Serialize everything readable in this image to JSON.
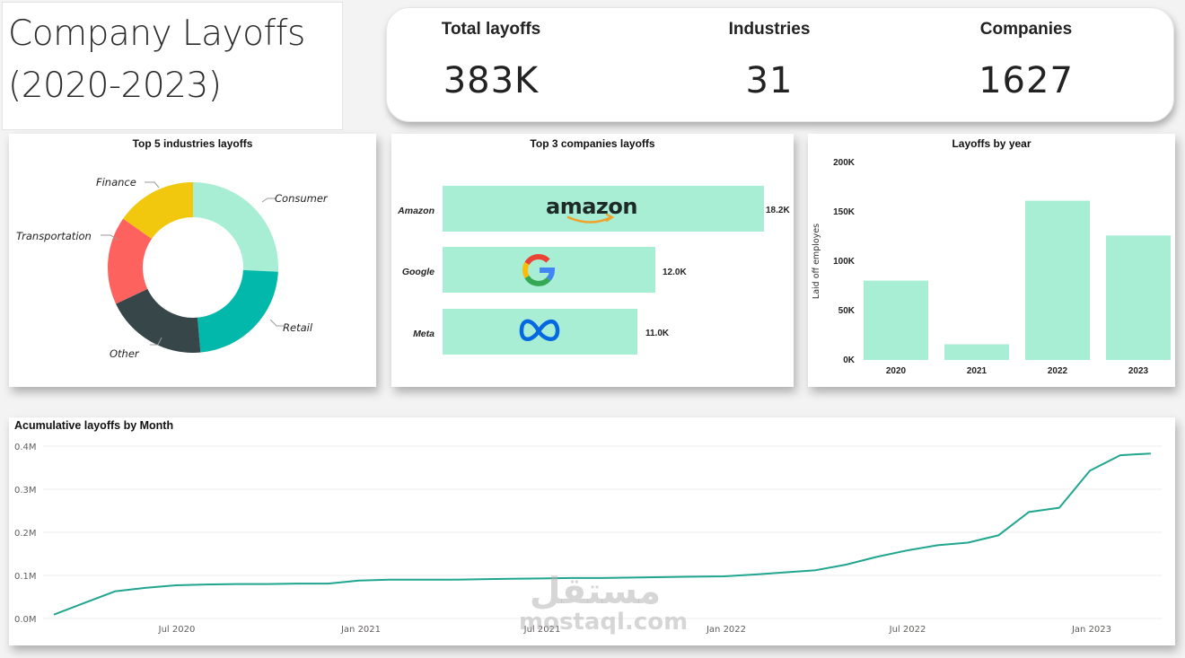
{
  "header": {
    "title_line1": "Company Layoffs",
    "title_line2": "(2020-2023)"
  },
  "kpis": [
    {
      "label": "Total layoffs",
      "value": "383K"
    },
    {
      "label": "Industries",
      "value": "31"
    },
    {
      "label": "Companies",
      "value": "1627"
    }
  ],
  "colors": {
    "accent": "#a8eed5",
    "line": "#20a58f",
    "consumer": "#a8eed5",
    "retail": "#01b8aa",
    "other": "#374649",
    "transportation": "#fd625e",
    "finance": "#f2c80f"
  },
  "donut": {
    "title": "Top 5 industries layoffs",
    "labels": [
      "Consumer",
      "Retail",
      "Other",
      "Transportation",
      "Finance"
    ]
  },
  "companies": {
    "title": "Top 3 companies layoffs",
    "items": [
      {
        "name": "Amazon",
        "value_label": "18.2K",
        "logo": "amazon-logo",
        "logo_text": "amazon"
      },
      {
        "name": "Google",
        "value_label": "12.0K",
        "logo": "google-g-logo",
        "logo_text": "G"
      },
      {
        "name": "Meta",
        "value_label": "11.0K",
        "logo": "meta-infinity-logo",
        "logo_text": "∞"
      }
    ]
  },
  "yearly": {
    "title": "Layoffs by year",
    "ylabel": "Laid off employes",
    "yticks": [
      "200K",
      "150K",
      "100K",
      "50K",
      "0K"
    ],
    "categories": [
      "2020",
      "2021",
      "2022",
      "2023"
    ]
  },
  "cumulative": {
    "title": "Acumulative layoffs by Month",
    "yticks": [
      "0.4M",
      "0.3M",
      "0.2M",
      "0.1M",
      "0.0M"
    ],
    "xticks": [
      "Jul 2020",
      "Jan 2021",
      "Jul 2021",
      "Jan 2022",
      "Jul 2022",
      "Jan 2023"
    ]
  },
  "watermark": {
    "arabic": "مستقل",
    "latin": "mostaql.com"
  },
  "chart_data": [
    {
      "type": "pie",
      "title": "Top 5 industries layoffs",
      "categories": [
        "Consumer",
        "Retail",
        "Other",
        "Transportation",
        "Finance"
      ],
      "values": [
        25.8,
        22.8,
        19.4,
        16.7,
        15.3
      ],
      "unit": "approx % share (donut)",
      "colors": [
        "#a8eed5",
        "#01b8aa",
        "#374649",
        "#fd625e",
        "#f2c80f"
      ]
    },
    {
      "type": "bar",
      "orientation": "horizontal",
      "title": "Top 3 companies layoffs",
      "categories": [
        "Amazon",
        "Google",
        "Meta"
      ],
      "values": [
        18200,
        12000,
        11000
      ],
      "data_labels": [
        "18.2K",
        "12.0K",
        "11.0K"
      ]
    },
    {
      "type": "bar",
      "title": "Layoffs by year",
      "categories": [
        "2020",
        "2021",
        "2022",
        "2023"
      ],
      "values": [
        80000,
        15800,
        160500,
        125500
      ],
      "xlabel": "",
      "ylabel": "Laid off employes",
      "ylim": [
        0,
        200000
      ],
      "yticks": [
        "0K",
        "50K",
        "100K",
        "150K",
        "200K"
      ],
      "grid": false
    },
    {
      "type": "line",
      "title": "Acumulative layoffs by Month",
      "x": [
        "Mar 2020",
        "Apr 2020",
        "May 2020",
        "Jun 2020",
        "Jul 2020",
        "Aug 2020",
        "Sep 2020",
        "Oct 2020",
        "Nov 2020",
        "Dec 2020",
        "Jan 2021",
        "Feb 2021",
        "Mar 2021",
        "Apr 2021",
        "May 2021",
        "Jun 2021",
        "Jul 2021",
        "Aug 2021",
        "Sep 2021",
        "Oct 2021",
        "Nov 2021",
        "Dec 2021",
        "Jan 2022",
        "Feb 2022",
        "Mar 2022",
        "Apr 2022",
        "May 2022",
        "Jun 2022",
        "Jul 2022",
        "Aug 2022",
        "Sep 2022",
        "Oct 2022",
        "Nov 2022",
        "Dec 2022",
        "Jan 2023",
        "Feb 2023",
        "Mar 2023"
      ],
      "values": [
        0.009,
        0.036,
        0.063,
        0.071,
        0.077,
        0.079,
        0.08,
        0.08,
        0.081,
        0.081,
        0.088,
        0.09,
        0.09,
        0.09,
        0.091,
        0.092,
        0.093,
        0.094,
        0.094,
        0.095,
        0.096,
        0.097,
        0.098,
        0.102,
        0.107,
        0.112,
        0.125,
        0.143,
        0.158,
        0.17,
        0.176,
        0.193,
        0.247,
        0.257,
        0.343,
        0.379,
        0.383
      ],
      "unit": "millions",
      "ylim": [
        0,
        0.4
      ],
      "yticks": [
        "0.0M",
        "0.1M",
        "0.2M",
        "0.3M",
        "0.4M"
      ],
      "xticks": [
        "Jul 2020",
        "Jan 2021",
        "Jul 2021",
        "Jan 2022",
        "Jul 2022",
        "Jan 2023"
      ],
      "grid": true
    }
  ]
}
